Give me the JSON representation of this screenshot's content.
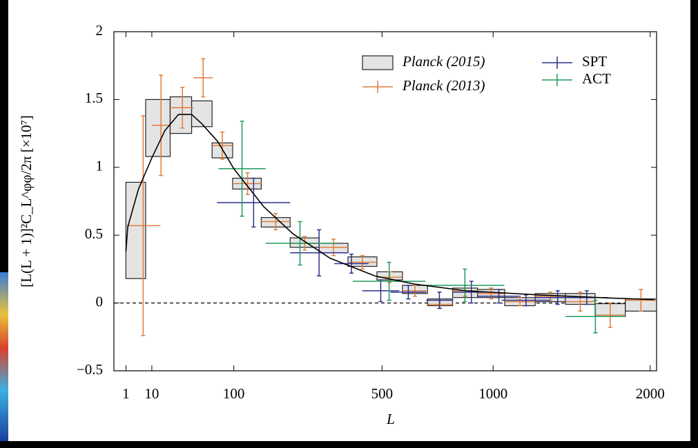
{
  "chart_data": {
    "type": "errorbar",
    "xlabel": "L",
    "ylabel": "[L(L + 1)]²C_L^φφ/2π  [×10⁷]",
    "xscale": "sqrt",
    "xlim": [
      0,
      2048
    ],
    "xticks": [
      1,
      10,
      100,
      500,
      1000,
      2000
    ],
    "ylim": [
      -0.5,
      2
    ],
    "yticks": [
      {
        "value": -0.5,
        "label": "−0.5"
      },
      0,
      0.5,
      1,
      1.5,
      2
    ],
    "zero_line": true,
    "legend": "upper right",
    "series": [
      {
        "name": "Planck (2015)",
        "type": "box",
        "color": "#e4e4e4",
        "x_low": [
          1,
          7,
          22,
          42,
          67,
          98,
          151,
          216,
          293,
          381,
          481,
          579,
          684,
          798,
          920,
          1062,
          1234,
          1418,
          1610,
          1819
        ],
        "x_high": [
          7,
          22,
          42,
          67,
          98,
          151,
          216,
          293,
          381,
          481,
          579,
          684,
          798,
          920,
          1062,
          1234,
          1418,
          1610,
          1819,
          2048
        ],
        "lower": [
          0.18,
          1.08,
          1.25,
          1.3,
          1.07,
          0.84,
          0.56,
          0.41,
          0.37,
          0.27,
          0.17,
          0.07,
          -0.02,
          0.04,
          0.04,
          -0.02,
          0.01,
          -0.01,
          -0.1,
          -0.06
        ],
        "upper": [
          0.89,
          1.5,
          1.52,
          1.49,
          1.18,
          0.92,
          0.63,
          0.48,
          0.44,
          0.34,
          0.23,
          0.13,
          0.03,
          0.11,
          0.1,
          0.04,
          0.07,
          0.07,
          -0.005,
          0.03
        ]
      },
      {
        "name": "Planck (2013)",
        "type": "errorbar",
        "color": "#e07b39",
        "x_low": [
          1,
          10,
          23,
          44,
          67,
          100,
          151,
          216,
          293,
          381,
          481,
          579,
          684,
          798,
          920,
          1062,
          1234,
          1418,
          1610,
          1819
        ],
        "x_high": [
          15,
          22,
          44,
          68,
          98,
          151,
          216,
          293,
          381,
          481,
          579,
          684,
          798,
          920,
          1062,
          1234,
          1418,
          1610,
          1819,
          2048
        ],
        "values": [
          0.57,
          1.31,
          1.44,
          1.66,
          1.16,
          0.88,
          0.6,
          0.44,
          0.41,
          0.3,
          0.19,
          0.09,
          -0.01,
          0.09,
          0.07,
          0.01,
          0.05,
          0.01,
          -0.09,
          0.02
        ],
        "errors": [
          0.81,
          0.37,
          0.15,
          0.14,
          0.1,
          0.08,
          0.06,
          0.05,
          0.06,
          0.05,
          0.04,
          0.04,
          0.03,
          0.04,
          0.04,
          0.03,
          0.03,
          0.07,
          0.09,
          0.08
        ]
      },
      {
        "name": "SPT",
        "type": "errorbar",
        "color": "#2b2f8f",
        "x_low": [
          74,
          216,
          338,
          429,
          532,
          678,
          798,
          917,
          1045,
          1234,
          1418
        ],
        "x_high": [
          216,
          381,
          451,
          566,
          678,
          798,
          984,
          1151,
          1325,
          1512,
          1698
        ],
        "values": [
          0.74,
          0.37,
          0.29,
          0.09,
          0.08,
          0.02,
          0.08,
          0.05,
          0.02,
          0.04,
          0.04
        ],
        "errors": [
          0.18,
          0.17,
          0.07,
          0.08,
          0.05,
          0.06,
          0.08,
          0.05,
          0.04,
          0.05,
          0.05
        ]
      },
      {
        "name": "ACT",
        "type": "errorbar",
        "color": "#1a9a5a",
        "x_low": [
          76,
          160,
          397,
          675,
          1418
        ],
        "x_high": [
          160,
          338,
          675,
          1060,
          1819
        ],
        "values": [
          0.99,
          0.44,
          0.16,
          0.13,
          -0.1
        ],
        "errors": [
          0.35,
          0.16,
          0.14,
          0.12,
          0.12
        ]
      },
      {
        "type": "line",
        "color": "#000000",
        "x": [
          1,
          1.33,
          4.2,
          10,
          18,
          29,
          42,
          54,
          75,
          100,
          156,
          223,
          325,
          473,
          627,
          860,
          1247,
          1748,
          2030
        ],
        "values": [
          0.38,
          0.56,
          0.84,
          1.07,
          1.27,
          1.39,
          1.39,
          1.32,
          1.19,
          0.99,
          0.71,
          0.51,
          0.33,
          0.2,
          0.14,
          0.09,
          0.06,
          0.035,
          0.025
        ]
      }
    ]
  }
}
